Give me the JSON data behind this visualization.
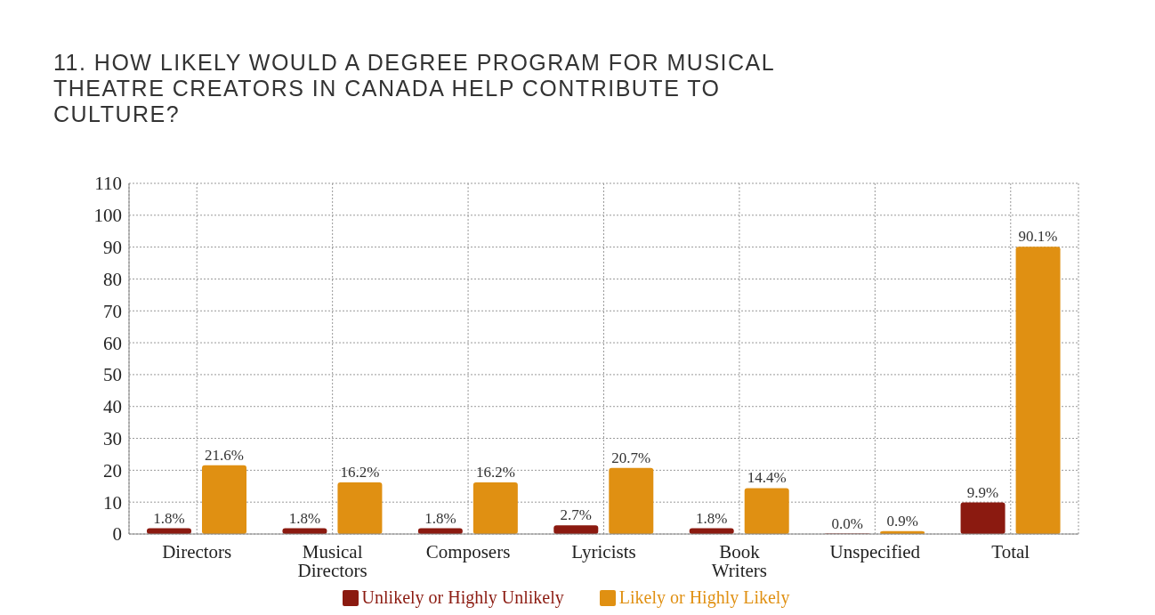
{
  "chart_data": {
    "type": "bar",
    "title": "11. HOW LIKELY WOULD A DEGREE PROGRAM FOR MUSICAL THEATRE CREATORS IN CANADA HELP CONTRIBUTE TO CULTURE?",
    "categories": [
      "Directors",
      "Musical Directors",
      "Composers",
      "Lyricists",
      "Book Writers",
      "Unspecified",
      "Total"
    ],
    "series": [
      {
        "name": "Unlikely or Highly Unlikely",
        "color": "#8b1a10",
        "values": [
          1.8,
          1.8,
          1.8,
          2.7,
          1.8,
          0.0,
          9.9
        ],
        "value_labels": [
          "1.8%",
          "1.8%",
          "1.8%",
          "2.7%",
          "1.8%",
          "0.0%",
          "9.9%"
        ]
      },
      {
        "name": "Likely or Highly Likely",
        "color": "#e09012",
        "values": [
          21.6,
          16.2,
          16.2,
          20.7,
          14.4,
          0.9,
          90.1
        ],
        "value_labels": [
          "21.6%",
          "16.2%",
          "16.2%",
          "20.7%",
          "14.4%",
          "0.9%",
          "90.1%"
        ]
      }
    ],
    "ylim": [
      0,
      110
    ],
    "yticks": [
      0,
      10,
      20,
      30,
      40,
      50,
      60,
      70,
      80,
      90,
      100,
      110
    ],
    "grid": true,
    "legend": "bottom"
  }
}
